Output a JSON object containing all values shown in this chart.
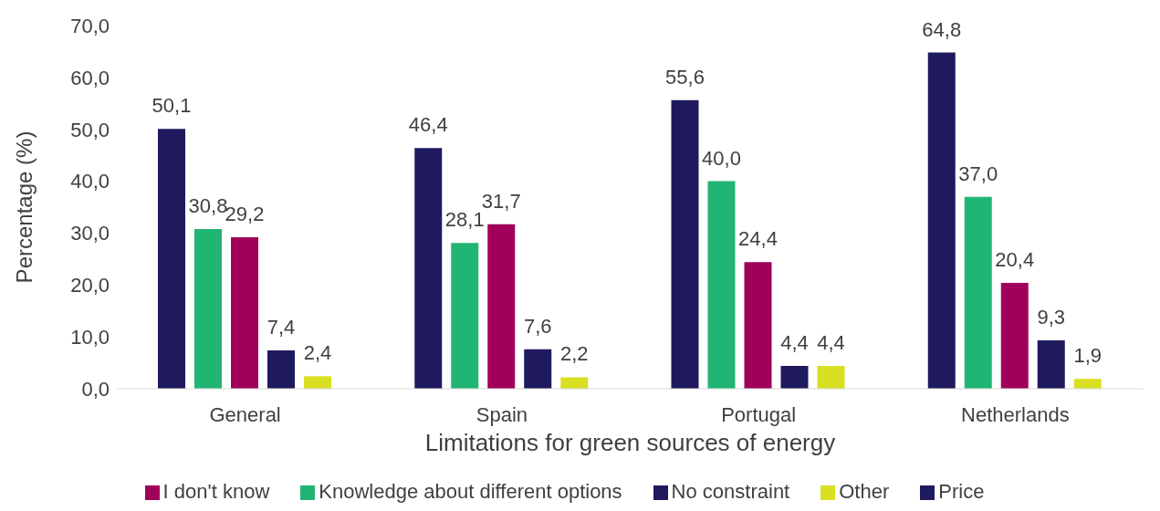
{
  "chart_data": {
    "type": "bar",
    "xlabel": "Limitations for green sources of energy",
    "ylabel": "Percentage (%)",
    "categories": [
      "General",
      "Spain",
      "Portugal",
      "Netherlands"
    ],
    "series": [
      {
        "name": "Price",
        "color": "#1f1a5e",
        "values": [
          50.1,
          46.4,
          55.6,
          64.8
        ],
        "value_labels": [
          "50,1",
          "46,4",
          "55,6",
          "64,8"
        ]
      },
      {
        "name": "Knowledge about different options",
        "color": "#21b573",
        "values": [
          30.8,
          28.1,
          40.0,
          37.0
        ],
        "value_labels": [
          "30,8",
          "28,1",
          "40,0",
          "37,0"
        ]
      },
      {
        "name": "I don't know",
        "color": "#a0005a",
        "values": [
          29.2,
          31.7,
          24.4,
          20.4
        ],
        "value_labels": [
          "29,2",
          "31,7",
          "24,4",
          "20,4"
        ]
      },
      {
        "name": "No constraint",
        "color": "#1f1a5e",
        "values": [
          7.4,
          7.6,
          4.4,
          9.3
        ],
        "value_labels": [
          "7,4",
          "7,6",
          "4,4",
          "9,3"
        ]
      },
      {
        "name": "Other",
        "color": "#d9e021",
        "values": [
          2.4,
          2.2,
          4.4,
          1.9
        ],
        "value_labels": [
          "2,4",
          "2,2",
          "4,4",
          "1,9"
        ]
      }
    ],
    "ylim": [
      0,
      70
    ],
    "yticks": [
      {
        "value": 0,
        "label": "0,0"
      },
      {
        "value": 10,
        "label": "10,0"
      },
      {
        "value": 20,
        "label": "20,0"
      },
      {
        "value": 30,
        "label": "30,0"
      },
      {
        "value": 40,
        "label": "40,0"
      },
      {
        "value": 50,
        "label": "50,0"
      },
      {
        "value": 60,
        "label": "60,0"
      },
      {
        "value": 70,
        "label": "70,0"
      }
    ],
    "grid": false,
    "legend": "bottom"
  }
}
